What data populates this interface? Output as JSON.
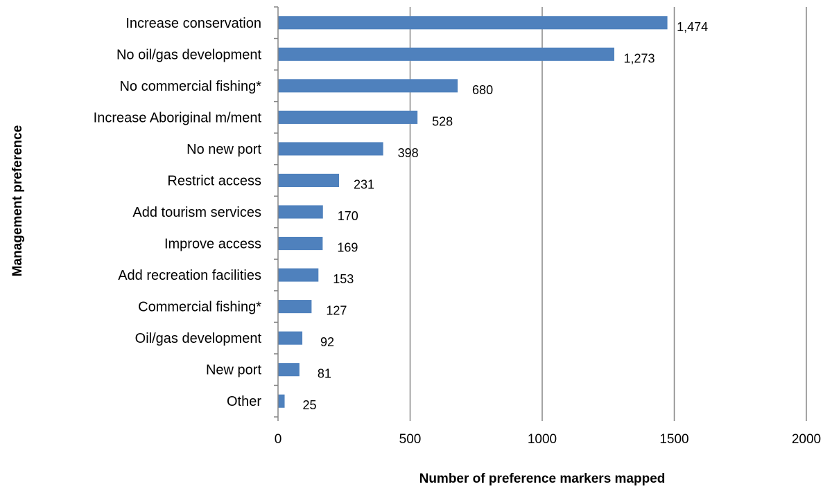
{
  "chart_data": {
    "type": "bar",
    "orientation": "horizontal",
    "title": "",
    "xlabel": "Number of preference markers mapped",
    "ylabel": "Management preference",
    "xlim": [
      0,
      2000
    ],
    "xticks": [
      "0",
      "500",
      "1000",
      "1500",
      "2000"
    ],
    "grid": "vertical",
    "legend": "none",
    "bar_color": "#4f81bd",
    "categories": [
      "Increase conservation",
      "No oil/gas development",
      "No commercial fishing*",
      "Increase Aboriginal m/ment",
      "No new port",
      "Restrict access",
      "Add tourism services",
      "Improve access",
      "Add recreation facilities",
      "Commercial fishing*",
      "Oil/gas development",
      "New port",
      "Other"
    ],
    "values": [
      1474,
      1273,
      680,
      528,
      398,
      231,
      170,
      169,
      153,
      127,
      92,
      81,
      25
    ],
    "value_labels": [
      "1,474",
      "1,273",
      "680",
      "528",
      "398",
      "231",
      "170",
      "169",
      "153",
      "127",
      "92",
      "81",
      "25"
    ]
  }
}
